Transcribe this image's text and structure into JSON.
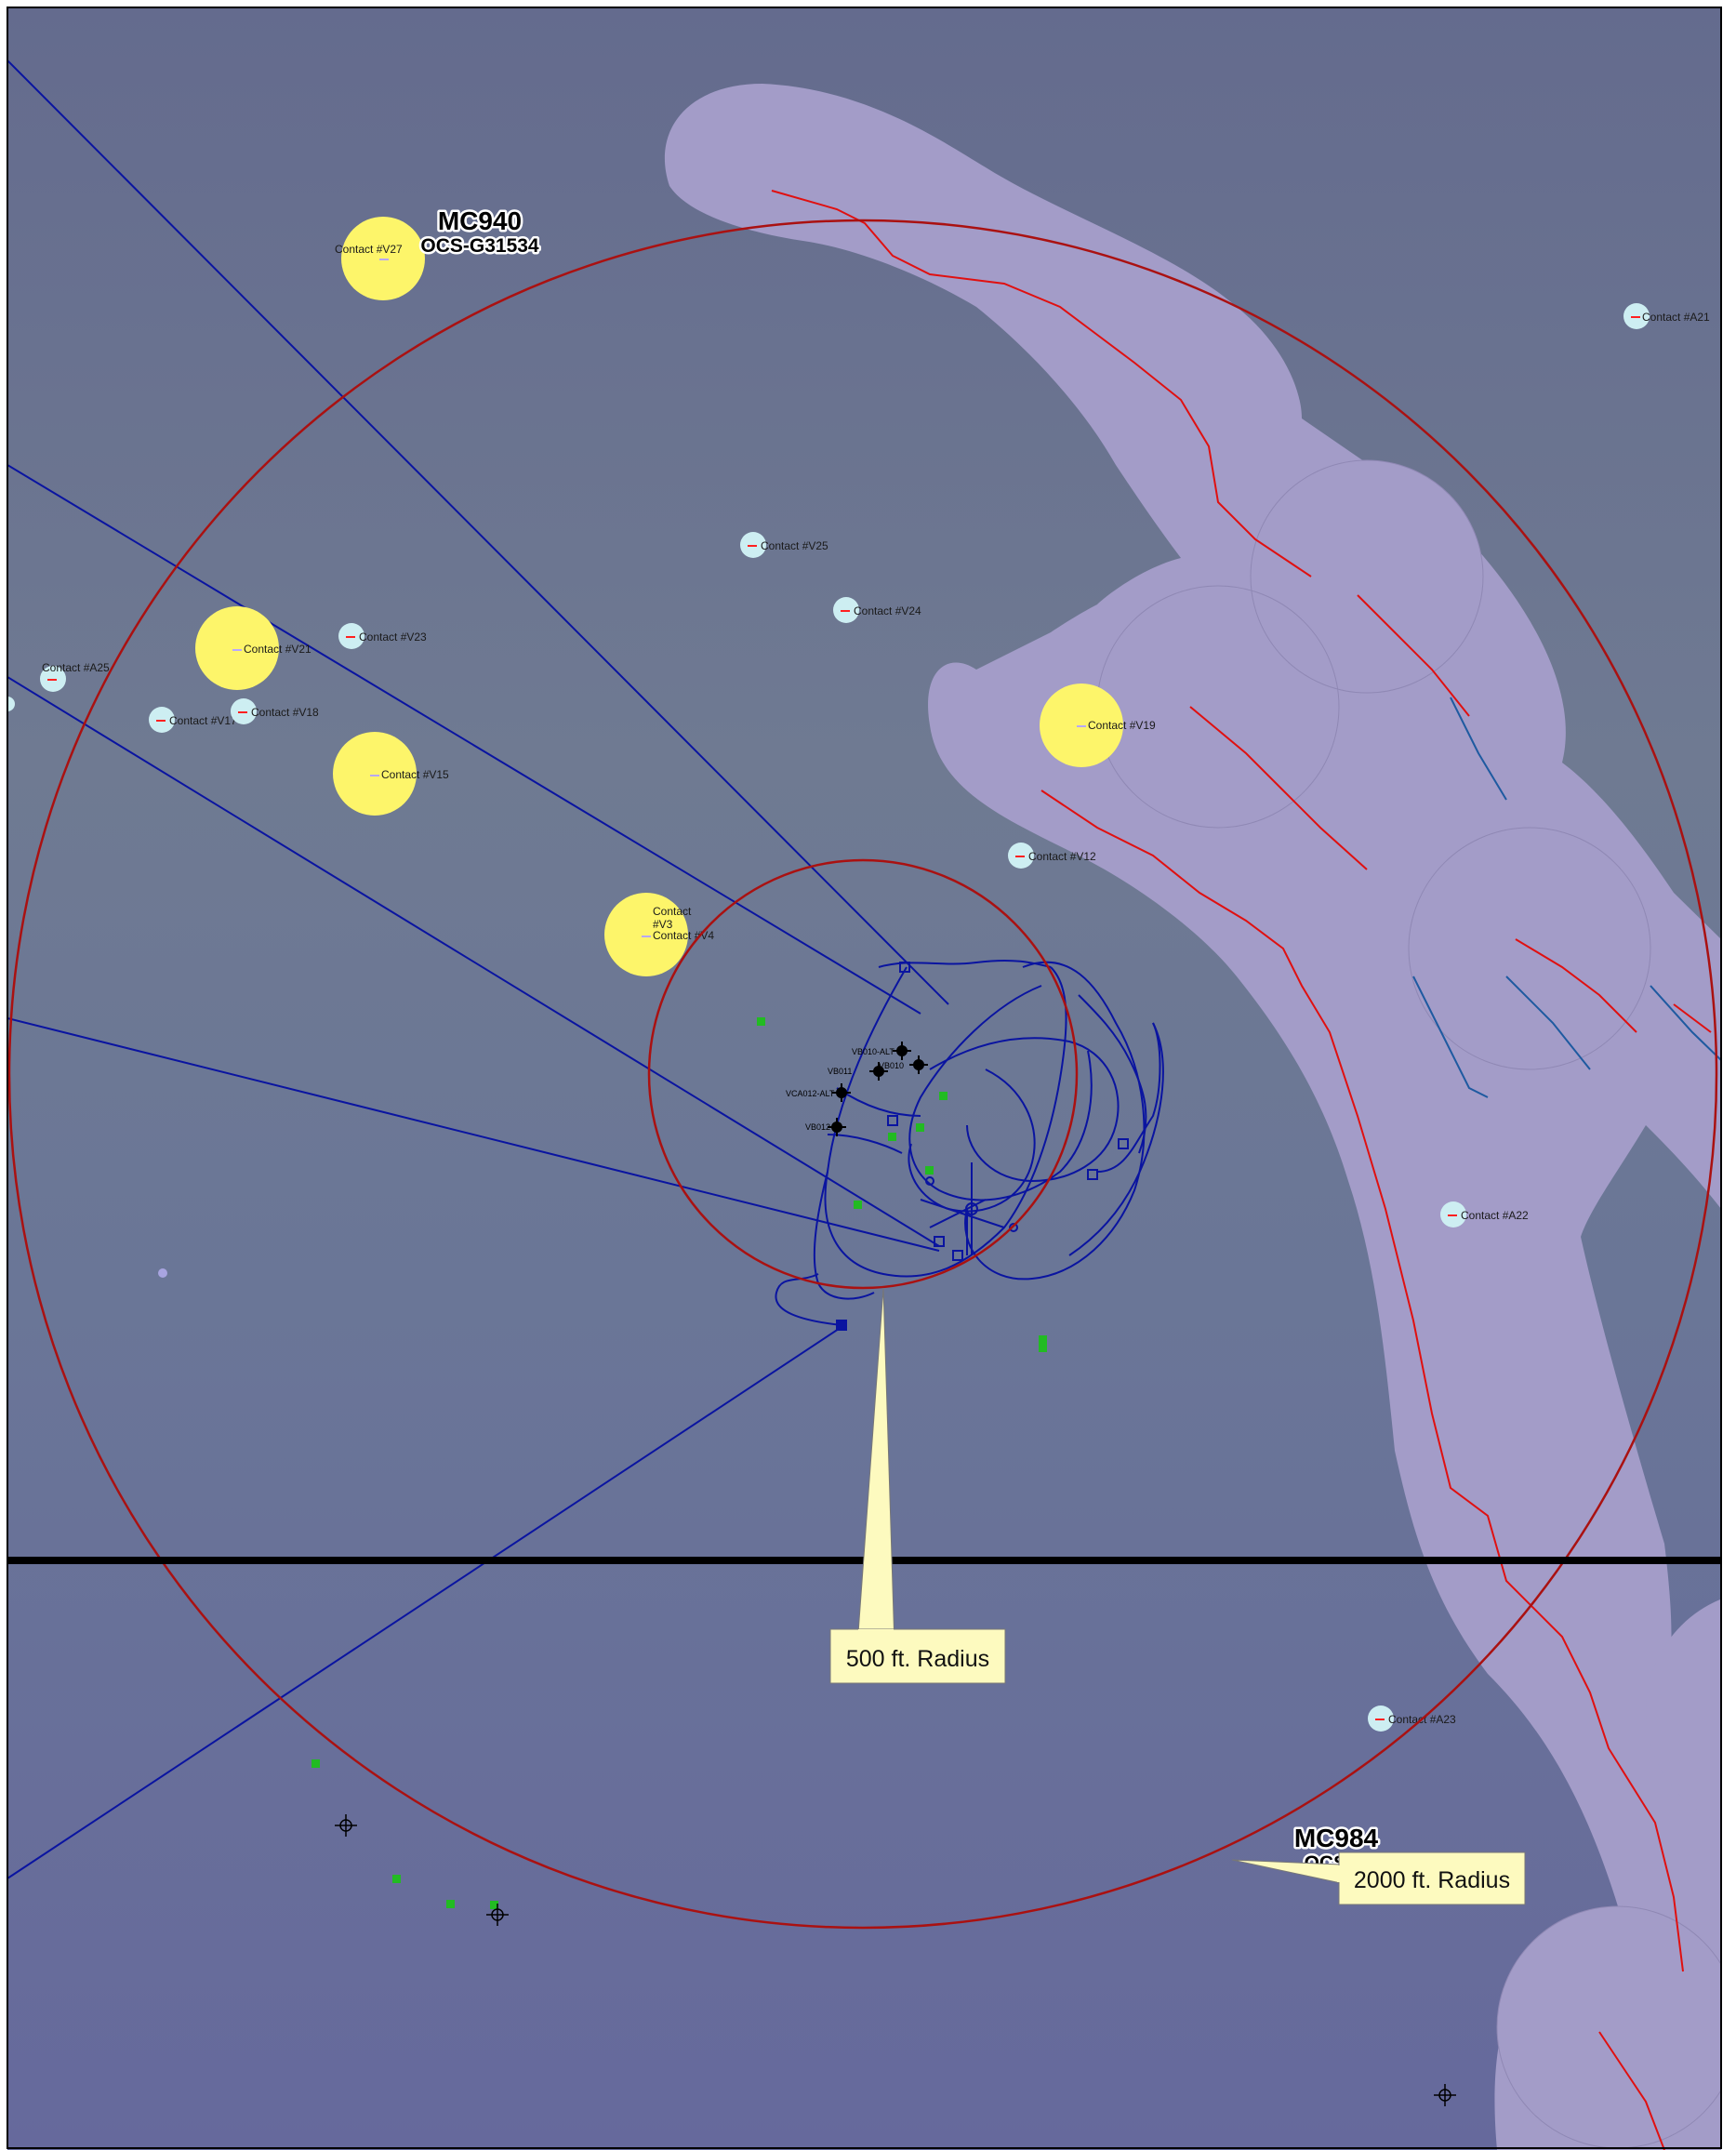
{
  "map": {
    "colors": {
      "seafloor": "#6b7894",
      "seafloor_dark": "#646c98",
      "buffer_zone": "#a39cc8",
      "buffer_outline": "#8f88b4",
      "radius_circle": "#aa1111",
      "fault_line": "#e01010",
      "fault_line_blue": "#1e5aa0",
      "survey_line": "#0a14a0",
      "contact_yellow": "#fdf56a",
      "contact_small": "#cdeef2",
      "green_marker": "#22bb22",
      "block_boundary": "#000000",
      "callout_fill": "#fdfabf"
    },
    "blocks": [
      {
        "name": "MC940",
        "lease": "OCS-G31534"
      },
      {
        "name": "MC984",
        "lease": "OCS-G"
      }
    ],
    "callouts": [
      {
        "text": "500 ft. Radius"
      },
      {
        "text": "2000 ft. Radius"
      }
    ],
    "large_contacts": [
      {
        "label": "Contact #V27"
      },
      {
        "label": "Contact #V21"
      },
      {
        "label": "Contact #V15"
      },
      {
        "label": "Contact #V19"
      },
      {
        "label_lines": [
          "Contact",
          "#V3",
          "Contact #V4"
        ]
      }
    ],
    "small_contacts": [
      {
        "label": "Contact #A21"
      },
      {
        "label": "Contact #V25"
      },
      {
        "label": "Contact #V24"
      },
      {
        "label": "Contact #V23"
      },
      {
        "label": "Contact #A25"
      },
      {
        "label": "Contact #V17"
      },
      {
        "label": "Contact #V18"
      },
      {
        "label": "Contact #V12"
      },
      {
        "label": "Contact #A22"
      },
      {
        "label": "Contact #A23"
      }
    ],
    "wells": [
      {
        "label": "VB010-ALT"
      },
      {
        "label": "VB011"
      },
      {
        "label": "VB010"
      },
      {
        "label": "VCA012-ALT"
      },
      {
        "label": "VB012"
      }
    ]
  }
}
